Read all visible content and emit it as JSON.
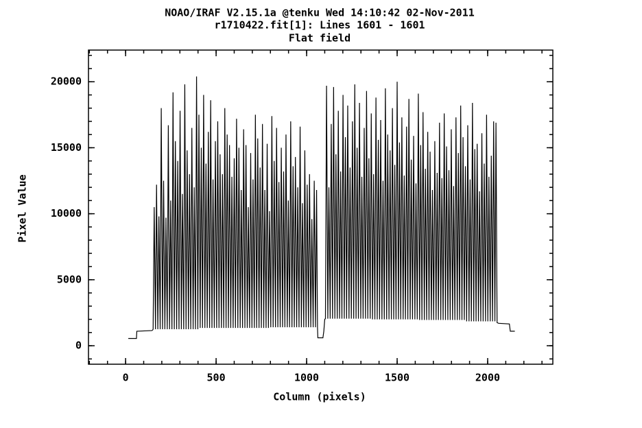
{
  "chart_data": {
    "type": "line",
    "title": [
      "NOAO/IRAF V2.15.1a @tenku Wed 14:10:42 02-Nov-2011",
      "r1710422.fit[1]: Lines 1601 - 1601",
      "Flat field"
    ],
    "xlabel": "Column (pixels)",
    "ylabel": "Pixel Value",
    "color": "#000000",
    "xlim": [
      -205,
      2360
    ],
    "ylim": [
      -1400,
      22400
    ],
    "xticks": [
      0,
      500,
      1000,
      1500,
      2000
    ],
    "yticks": [
      0,
      5000,
      10000,
      15000,
      20000
    ],
    "minor_divisions": 5,
    "x": [
      15,
      60,
      62,
      145,
      150,
      152,
      158,
      165,
      171,
      178,
      184,
      191,
      197,
      204,
      210,
      217,
      223,
      230,
      236,
      243,
      249,
      256,
      262,
      269,
      275,
      282,
      288,
      295,
      301,
      308,
      314,
      321,
      327,
      334,
      340,
      347,
      353,
      360,
      366,
      373,
      379,
      386,
      392,
      399,
      405,
      412,
      418,
      425,
      431,
      438,
      444,
      451,
      457,
      464,
      470,
      477,
      483,
      490,
      496,
      503,
      509,
      516,
      522,
      529,
      535,
      542,
      548,
      555,
      561,
      568,
      574,
      581,
      587,
      594,
      600,
      607,
      613,
      620,
      626,
      633,
      639,
      646,
      652,
      659,
      665,
      672,
      678,
      685,
      691,
      698,
      704,
      711,
      717,
      724,
      730,
      737,
      743,
      750,
      756,
      763,
      769,
      776,
      782,
      789,
      795,
      802,
      808,
      815,
      821,
      828,
      834,
      841,
      847,
      854,
      860,
      867,
      873,
      880,
      886,
      893,
      899,
      906,
      912,
      919,
      925,
      932,
      938,
      945,
      951,
      958,
      964,
      971,
      977,
      984,
      990,
      997,
      1003,
      1010,
      1016,
      1023,
      1029,
      1036,
      1042,
      1049,
      1055,
      1060,
      1062,
      1090,
      1095,
      1100,
      1104,
      1110,
      1117,
      1123,
      1130,
      1136,
      1143,
      1149,
      1156,
      1162,
      1169,
      1175,
      1182,
      1188,
      1195,
      1201,
      1208,
      1214,
      1221,
      1227,
      1234,
      1240,
      1247,
      1253,
      1260,
      1266,
      1273,
      1279,
      1286,
      1292,
      1299,
      1305,
      1312,
      1318,
      1325,
      1331,
      1338,
      1344,
      1351,
      1357,
      1364,
      1370,
      1377,
      1383,
      1390,
      1396,
      1403,
      1409,
      1416,
      1422,
      1429,
      1435,
      1442,
      1448,
      1455,
      1461,
      1468,
      1474,
      1481,
      1487,
      1494,
      1500,
      1507,
      1513,
      1520,
      1526,
      1533,
      1539,
      1546,
      1552,
      1559,
      1565,
      1572,
      1578,
      1585,
      1591,
      1598,
      1604,
      1611,
      1617,
      1624,
      1630,
      1637,
      1643,
      1650,
      1656,
      1663,
      1669,
      1676,
      1682,
      1689,
      1695,
      1702,
      1708,
      1715,
      1721,
      1728,
      1734,
      1741,
      1747,
      1754,
      1760,
      1767,
      1773,
      1780,
      1786,
      1793,
      1799,
      1806,
      1812,
      1819,
      1825,
      1832,
      1838,
      1845,
      1851,
      1858,
      1864,
      1871,
      1877,
      1884,
      1890,
      1897,
      1903,
      1910,
      1916,
      1923,
      1929,
      1936,
      1942,
      1949,
      1955,
      1962,
      1968,
      1975,
      1981,
      1988,
      1994,
      2001,
      2007,
      2014,
      2020,
      2027,
      2033,
      2040,
      2046,
      2052,
      2060,
      2120,
      2125,
      2150
    ],
    "values": [
      550,
      550,
      1100,
      1150,
      1200,
      1250,
      10500,
      1250,
      12200,
      1250,
      9800,
      1250,
      18000,
      1250,
      12500,
      1250,
      9700,
      1250,
      16700,
      1250,
      11000,
      1250,
      19200,
      1250,
      15500,
      1250,
      14000,
      1250,
      17800,
      1250,
      11500,
      1250,
      19800,
      1250,
      14800,
      1250,
      13000,
      1250,
      16500,
      1250,
      12000,
      1250,
      20400,
      1250,
      17500,
      1350,
      15000,
      1350,
      19000,
      1350,
      13800,
      1350,
      16200,
      1350,
      18600,
      1350,
      12600,
      1350,
      15500,
      1350,
      17000,
      1350,
      14500,
      1350,
      13000,
      1350,
      18000,
      1350,
      16000,
      1350,
      15200,
      1350,
      12800,
      1350,
      14200,
      1350,
      17200,
      1350,
      15000,
      1350,
      11800,
      1350,
      16400,
      1350,
      15200,
      1350,
      10500,
      1350,
      14600,
      1350,
      12600,
      1350,
      17500,
      1350,
      15700,
      1350,
      13500,
      1350,
      16800,
      1350,
      11800,
      1350,
      15300,
      1350,
      10200,
      1400,
      17400,
      1400,
      14000,
      1400,
      16500,
      1400,
      12400,
      1400,
      15000,
      1400,
      13200,
      1400,
      16000,
      1400,
      11000,
      1400,
      17000,
      1400,
      13600,
      1400,
      14300,
      1400,
      12000,
      1400,
      16600,
      1400,
      10800,
      1400,
      14800,
      1400,
      12200,
      1400,
      13000,
      1400,
      9600,
      1400,
      12500,
      1400,
      11800,
      1400,
      600,
      600,
      1100,
      2000,
      2050,
      19700,
      2050,
      12000,
      2050,
      16800,
      2050,
      19600,
      2050,
      14500,
      2050,
      17800,
      2050,
      13200,
      2050,
      19000,
      2050,
      15800,
      2050,
      18200,
      2050,
      13500,
      2050,
      17000,
      2050,
      19800,
      2050,
      15000,
      2050,
      18400,
      2050,
      12800,
      2050,
      16500,
      2050,
      19300,
      2050,
      14200,
      2050,
      17600,
      2000,
      13000,
      2000,
      18800,
      2000,
      15600,
      2000,
      17100,
      2000,
      12500,
      2000,
      19500,
      2000,
      16000,
      2000,
      14800,
      2000,
      18000,
      2000,
      13700,
      2000,
      20000,
      2000,
      15400,
      2000,
      17300,
      2000,
      12900,
      2000,
      16600,
      2000,
      18700,
      2000,
      14100,
      2000,
      15900,
      2000,
      12300,
      2000,
      19100,
      1950,
      15200,
      1950,
      17700,
      1950,
      13400,
      1950,
      16200,
      1950,
      14700,
      1950,
      11800,
      1950,
      15500,
      1950,
      13100,
      1950,
      16900,
      1950,
      12700,
      1950,
      17600,
      1950,
      15100,
      1950,
      13300,
      1950,
      16400,
      1950,
      12100,
      1950,
      17300,
      1950,
      14600,
      1950,
      18200,
      1950,
      15800,
      1950,
      13600,
      1850,
      16700,
      1850,
      12600,
      1850,
      18400,
      1850,
      14900,
      1850,
      15300,
      1850,
      11700,
      1850,
      16100,
      1850,
      13800,
      1850,
      17500,
      1850,
      12800,
      1850,
      14400,
      1850,
      17000,
      1850,
      16900,
      1750,
      1700,
      1650,
      1100,
      1100
    ]
  }
}
